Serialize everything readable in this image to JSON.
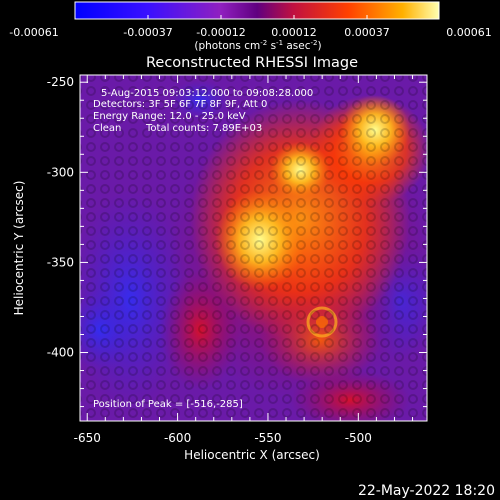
{
  "colorbar": {
    "ticks": [
      "-0.00061",
      "-0.00037",
      "-0.00012",
      "0.00012",
      "0.00037",
      "0.00061"
    ],
    "units_parts": [
      "(photons cm",
      "-2",
      " s",
      "-1",
      " asec",
      "-2",
      ")"
    ]
  },
  "title": "Reconstructed RHESSI Image",
  "info": {
    "time_range": "5-Aug-2015 09:03:12.000 to 09:08:28.000",
    "detectors": "Detectors: 3F 5F 6F 7F 8F 9F, Att 0",
    "energy_range": "Energy Range: 12.0 - 25.0 keV",
    "method": "Clean",
    "total_counts": "Total counts: 7.89E+03",
    "peak_position": "Position of Peak = [-516,-285]"
  },
  "axes": {
    "xlabel": "Heliocentric X (arcsec)",
    "ylabel": "Heliocentric Y (arcsec)",
    "xticks": [
      {
        "value": -650,
        "label": "-650"
      },
      {
        "value": -600,
        "label": "-600"
      },
      {
        "value": -550,
        "label": "-550"
      },
      {
        "value": -500,
        "label": "-500"
      }
    ],
    "yticks": [
      {
        "value": -250,
        "label": "-250"
      },
      {
        "value": -300,
        "label": "-300"
      },
      {
        "value": -350,
        "label": "-350"
      },
      {
        "value": -400,
        "label": "-400"
      }
    ],
    "xlim": [
      -654,
      -462
    ],
    "ylim": [
      -438,
      -246
    ]
  },
  "timestamp": "22-May-2022 18:20"
}
